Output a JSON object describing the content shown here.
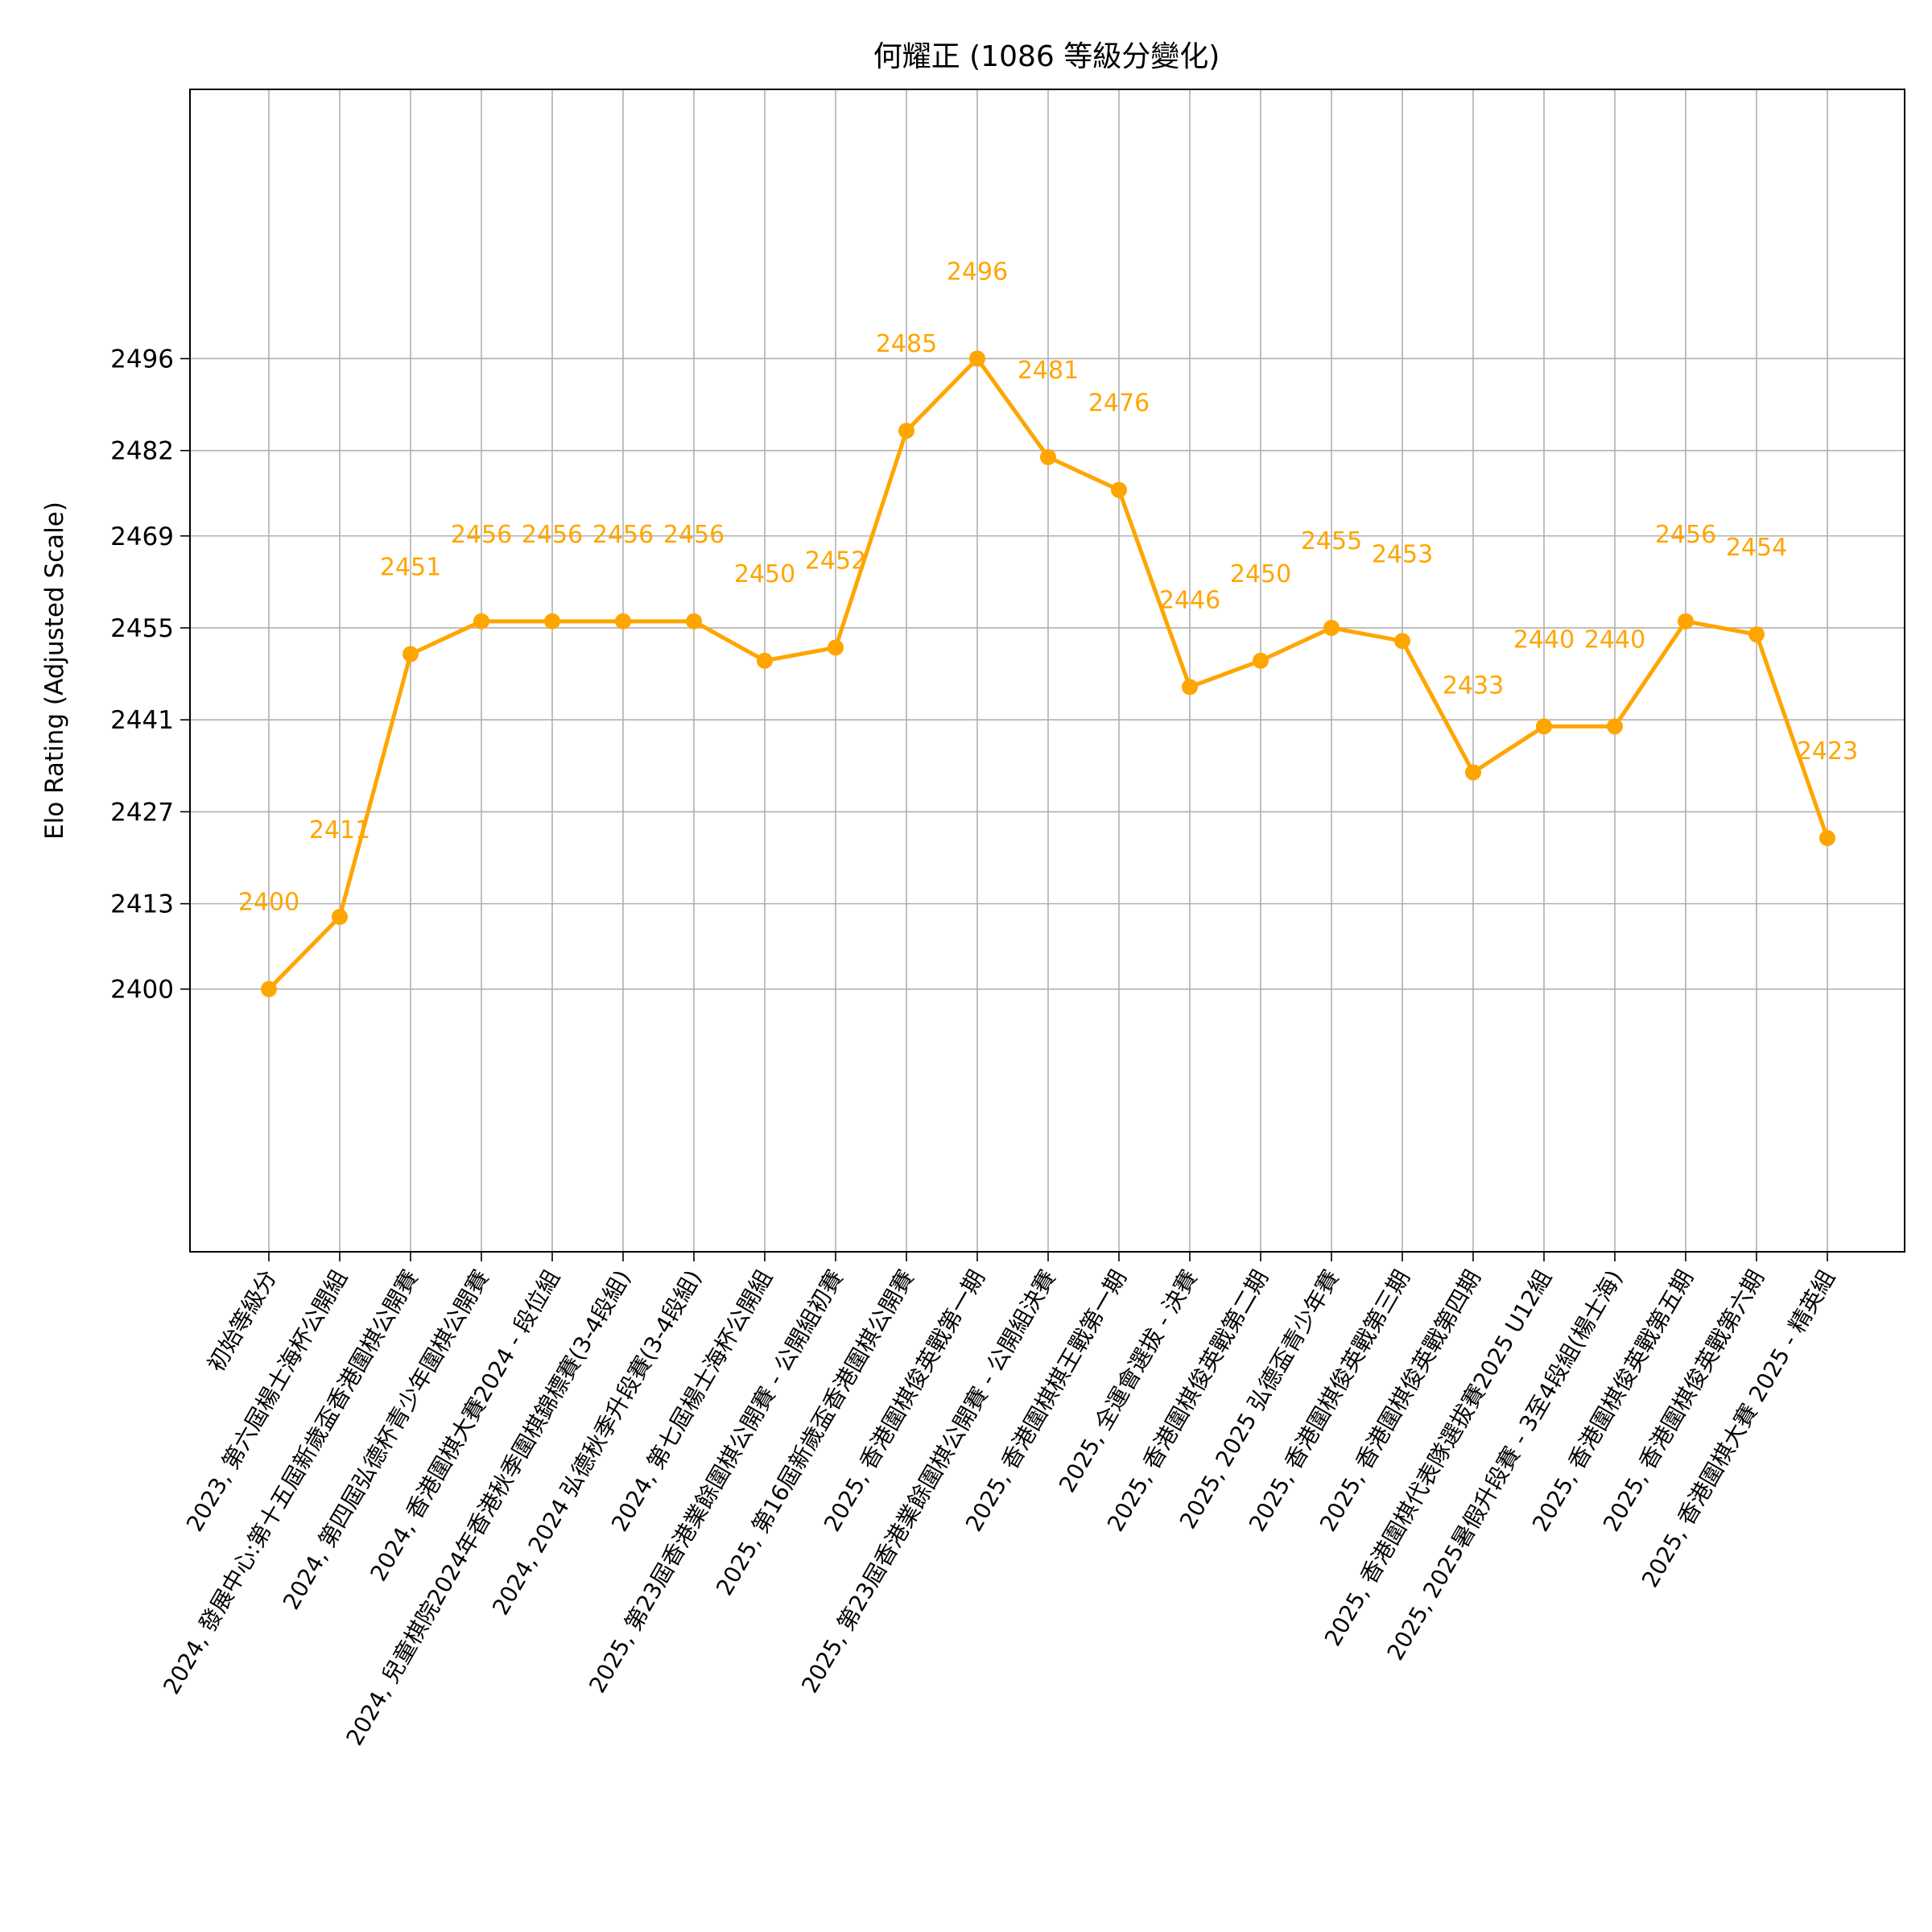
{
  "chart_data": {
    "type": "line",
    "title": "何耀正 (1086 等級分變化)",
    "xlabel": "",
    "ylabel": "Elo Rating (Adjusted Scale)",
    "ylim": [
      2360,
      2537
    ],
    "yticks": [
      2400,
      2413,
      2427,
      2441,
      2455,
      2469,
      2482,
      2496
    ],
    "grid": true,
    "color": "#FFA500",
    "categories": [
      "初始等級分",
      "2023, 第六屆楊士海杯公開組",
      "2024, 發展中心:第十五屆新歲盃香港圍棋公開賽",
      "2024, 第四屆弘德杯青少年圍棋公開賽",
      "2024, 香港圍棋大賽2024 - 段位組",
      "2024, 兒童棋院2024年香港秋季圍棋錦標賽(3-4段組)",
      "2024, 2024 弘德秋季升段賽(3-4段組)",
      "2024, 第七屆楊士海杯公開組",
      "2025, 第23屆香港業餘圍棋公開賽 - 公開組初賽",
      "2025, 第16屆新歲盃香港圍棋公開賽",
      "2025, 香港圍棋俊英戰第一期",
      "2025, 第23屆香港業餘圍棋公開賽 - 公開組決賽",
      "2025, 香港圍棋棋王戰第一期",
      "2025, 全運會選拔 - 決賽",
      "2025, 香港圍棋俊英戰第二期",
      "2025, 2025 弘德盃青少年賽",
      "2025, 香港圍棋俊英戰第三期",
      "2025, 香港圍棋俊英戰第四期",
      "2025, 香港圍棋代表隊選拔賽2025 U12組",
      "2025, 2025暑假升段賽 - 3至4段組(楊士海)",
      "2025, 香港圍棋俊英戰第五期",
      "2025, 香港圍棋俊英戰第六期",
      "2025, 香港圍棋大賽 2025 - 精英組"
    ],
    "values": [
      2400,
      2411,
      2451,
      2456,
      2456,
      2456,
      2456,
      2450,
      2452,
      2485,
      2496,
      2481,
      2476,
      2446,
      2450,
      2455,
      2453,
      2433,
      2440,
      2440,
      2456,
      2454,
      2423
    ],
    "data_labels": [
      "2400",
      "2411",
      "2451",
      "2456",
      "2456",
      "2456",
      "2456",
      "2450",
      "2452",
      "2485",
      "2496",
      "2481",
      "2476",
      "2446",
      "2450",
      "2455",
      "2453",
      "2433",
      "2440",
      "2440",
      "2456",
      "2454",
      "2423"
    ]
  }
}
